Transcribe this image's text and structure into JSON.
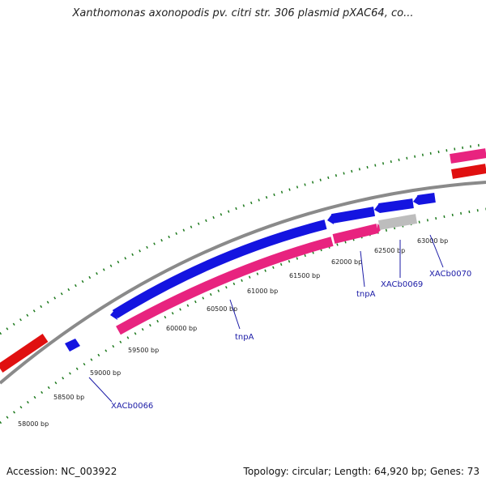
{
  "title": "Xanthomonas axonopodis pv. citri str. 306 plasmid pXAC64, co...",
  "footer": {
    "accession": "Accession: NC_003922",
    "summary": "Topology: circular; Length: 64,920 bp; Genes: 73"
  },
  "colors": {
    "cds_forward": "#1414e0",
    "cds_reverse": "#e8237f",
    "gene": "#e01010",
    "pseudo": "#bdbdbd",
    "backbone": "#8a8a8a",
    "tick": "#1e7a1e",
    "label_line": "#1a1aa6"
  },
  "ticks": [
    {
      "label": "58000 bp"
    },
    {
      "label": "58500 bp"
    },
    {
      "label": "59000 bp"
    },
    {
      "label": "59500 bp"
    },
    {
      "label": "60000 bp"
    },
    {
      "label": "60500 bp"
    },
    {
      "label": "61000 bp"
    },
    {
      "label": "61500 bp"
    },
    {
      "label": "62000 bp"
    },
    {
      "label": "62500 bp"
    },
    {
      "label": "63000 bp"
    }
  ],
  "gene_labels": [
    {
      "text": "XACb0066"
    },
    {
      "text": "tnpA"
    },
    {
      "text": "tnpA"
    },
    {
      "text": "XACb0069"
    },
    {
      "text": "XACb0070"
    }
  ]
}
